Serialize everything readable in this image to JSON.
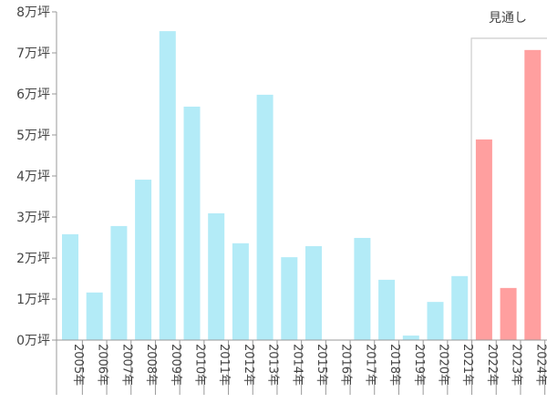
{
  "chart_data": {
    "type": "bar",
    "title": "",
    "xlabel": "",
    "ylabel": "",
    "ylim": [
      0,
      8
    ],
    "yunit": "万坪",
    "yticks": [
      "0万坪",
      "1万坪",
      "2万坪",
      "3万坪",
      "4万坪",
      "5万坪",
      "6万坪",
      "7万坪",
      "8万坪"
    ],
    "categories": [
      "2005年",
      "2006年",
      "2007年",
      "2008年",
      "2009年",
      "2010年",
      "2011年",
      "2012年",
      "2013年",
      "2014年",
      "2015年",
      "2016年",
      "2017年",
      "2018年",
      "2019年",
      "2020年",
      "2021年",
      "2022年",
      "2023年",
      "2024年"
    ],
    "values": [
      2.58,
      1.16,
      2.78,
      3.91,
      7.53,
      5.69,
      3.09,
      2.36,
      5.98,
      2.02,
      2.29,
      0,
      2.49,
      1.47,
      0.11,
      0.93,
      1.56,
      4.89,
      1.27,
      7.07
    ],
    "forecast_from_index": 17,
    "forecast_label": "見通し",
    "colors": {
      "actual": "#b3ebf7",
      "forecast": "#ff9f9f",
      "axis": "#999999",
      "box": "#cccccc"
    }
  }
}
